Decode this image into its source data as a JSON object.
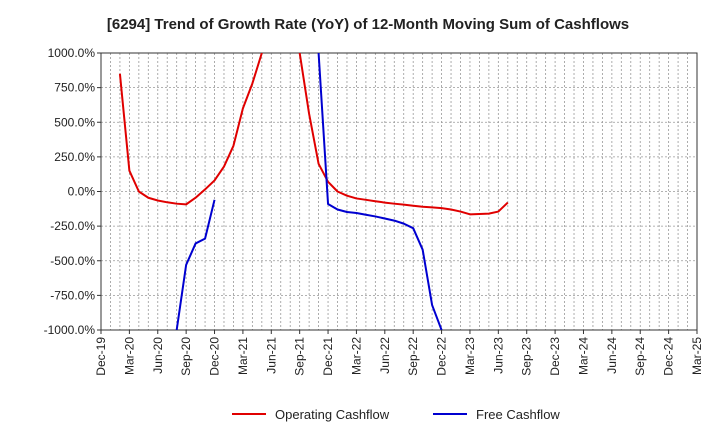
{
  "chart_data": {
    "type": "line",
    "title": "[6294]  Trend of Growth Rate (YoY) of 12-Month Moving Sum of Cashflows",
    "xlabel": "",
    "ylabel": "",
    "ylim": [
      -1000,
      1000
    ],
    "y_ticks": [
      "1000.0%",
      "750.0%",
      "500.0%",
      "250.0%",
      "0.0%",
      "-250.0%",
      "-500.0%",
      "-750.0%",
      "-1000.0%"
    ],
    "x_ticks": [
      "Dec-19",
      "Mar-20",
      "Jun-20",
      "Sep-20",
      "Dec-20",
      "Mar-21",
      "Jun-21",
      "Sep-21",
      "Dec-21",
      "Mar-22",
      "Jun-22",
      "Sep-22",
      "Dec-22",
      "Mar-23",
      "Jun-23",
      "Sep-23",
      "Dec-23",
      "Mar-24",
      "Jun-24",
      "Sep-24",
      "Dec-24",
      "Mar-25"
    ],
    "grid": true,
    "legend_position": "bottom",
    "series": [
      {
        "name": "Operating Cashflow",
        "color": "#e00000",
        "points": [
          [
            "2020-02",
            850
          ],
          [
            "2020-03",
            150
          ],
          [
            "2020-04",
            0
          ],
          [
            "2020-05",
            -45
          ],
          [
            "2020-06",
            -65
          ],
          [
            "2020-07",
            -78
          ],
          [
            "2020-08",
            -88
          ],
          [
            "2020-09",
            -93
          ],
          [
            "2020-10",
            -45
          ],
          [
            "2020-11",
            15
          ],
          [
            "2020-12",
            80
          ],
          [
            "2021-01",
            180
          ],
          [
            "2021-02",
            330
          ],
          [
            "2021-03",
            600
          ],
          [
            "2021-04",
            780
          ],
          [
            "2021-05",
            1000
          ],
          null,
          [
            "2021-09",
            1000
          ],
          [
            "2021-10",
            560
          ],
          [
            "2021-11",
            200
          ],
          [
            "2021-12",
            70
          ],
          [
            "2022-01",
            0
          ],
          [
            "2022-02",
            -30
          ],
          [
            "2022-03",
            -50
          ],
          [
            "2022-04",
            -60
          ],
          [
            "2022-05",
            -70
          ],
          [
            "2022-06",
            -80
          ],
          [
            "2022-07",
            -88
          ],
          [
            "2022-08",
            -95
          ],
          [
            "2022-09",
            -103
          ],
          [
            "2022-10",
            -110
          ],
          [
            "2022-11",
            -115
          ],
          [
            "2022-12",
            -120
          ],
          [
            "2023-01",
            -130
          ],
          [
            "2023-02",
            -145
          ],
          [
            "2023-03",
            -165
          ],
          [
            "2023-04",
            -162
          ],
          [
            "2023-05",
            -160
          ],
          [
            "2023-06",
            -145
          ],
          [
            "2023-07",
            -80
          ]
        ]
      },
      {
        "name": "Free Cashflow",
        "color": "#0000d0",
        "points": [
          [
            "2020-08",
            -1000
          ],
          [
            "2020-09",
            -530
          ],
          [
            "2020-10",
            -375
          ],
          [
            "2020-11",
            -340
          ],
          [
            "2020-12",
            -60
          ],
          null,
          [
            "2021-11",
            1000
          ],
          [
            "2021-12",
            -90
          ],
          [
            "2022-01",
            -130
          ],
          [
            "2022-02",
            -148
          ],
          [
            "2022-03",
            -155
          ],
          [
            "2022-04",
            -168
          ],
          [
            "2022-05",
            -180
          ],
          [
            "2022-06",
            -195
          ],
          [
            "2022-07",
            -210
          ],
          [
            "2022-08",
            -232
          ],
          [
            "2022-09",
            -265
          ],
          [
            "2022-10",
            -420
          ],
          [
            "2022-11",
            -820
          ],
          [
            "2022-12",
            -1000
          ]
        ]
      }
    ]
  }
}
